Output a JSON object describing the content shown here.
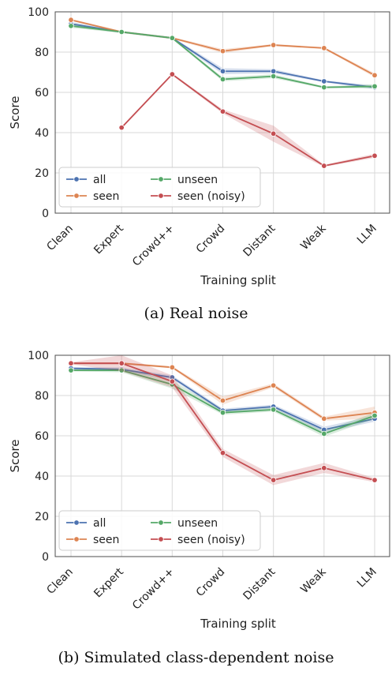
{
  "figure": {
    "caption_a": "(a) Real noise",
    "caption_b": "(b) Simulated class-dependent noise"
  },
  "colors": {
    "all": "#4c72b0",
    "seen": "#dd8452",
    "unseen": "#55a868",
    "seen_noisy": "#c44e52",
    "grid": "#d9d9d9",
    "axis": "#4d4d4d"
  },
  "chart_data": [
    {
      "type": "line",
      "xlabel": "Training split",
      "ylabel": "Score",
      "categories": [
        "Clean",
        "Expert",
        "Crowd++",
        "Crowd",
        "Distant",
        "Weak",
        "LLM"
      ],
      "ylim": [
        0,
        100
      ],
      "yticks": [
        0,
        20,
        40,
        60,
        80,
        100
      ],
      "grid": true,
      "legend": "lower-left",
      "series": [
        {
          "name": "all",
          "values": [
            94,
            90,
            87,
            70.5,
            70.5,
            65.5,
            62.5
          ],
          "band": [
            1,
            0.5,
            0.5,
            1.5,
            1,
            0.5,
            1
          ]
        },
        {
          "name": "seen",
          "values": [
            96,
            90,
            87,
            80.5,
            83.5,
            82,
            68.5
          ],
          "band": [
            0.5,
            0.5,
            0.5,
            1,
            0.5,
            0.5,
            1
          ]
        },
        {
          "name": "unseen",
          "values": [
            93,
            90,
            87,
            66.5,
            68,
            62.5,
            63
          ],
          "band": [
            1,
            0.5,
            0.5,
            1,
            1,
            0.5,
            1
          ]
        },
        {
          "name": "seen (noisy)",
          "values": [
            null,
            42.5,
            69,
            50.5,
            39.5,
            23.5,
            28.5
          ],
          "band": [
            0,
            0.5,
            0.5,
            1,
            4,
            0.5,
            1
          ]
        }
      ]
    },
    {
      "type": "line",
      "xlabel": "Training split",
      "ylabel": "Score",
      "categories": [
        "Clean",
        "Expert",
        "Crowd++",
        "Crowd",
        "Distant",
        "Weak",
        "LLM"
      ],
      "ylim": [
        0,
        100
      ],
      "yticks": [
        0,
        20,
        40,
        60,
        80,
        100
      ],
      "grid": true,
      "legend": "lower-left",
      "series": [
        {
          "name": "all",
          "values": [
            93.5,
            93,
            89,
            72.5,
            74.5,
            63,
            68.5
          ],
          "band": [
            0.5,
            1,
            1,
            1,
            1,
            1.5,
            1.5
          ]
        },
        {
          "name": "seen",
          "values": [
            96,
            96,
            94,
            77.5,
            85,
            68.5,
            71.5
          ],
          "band": [
            0.5,
            0.5,
            0.5,
            2,
            1,
            1,
            3
          ]
        },
        {
          "name": "unseen",
          "values": [
            92.5,
            92.5,
            85.5,
            71.5,
            73,
            61,
            70
          ],
          "band": [
            0.5,
            1,
            2,
            1,
            1,
            1.5,
            1.5
          ]
        },
        {
          "name": "seen (noisy)",
          "values": [
            96,
            96,
            87,
            51.5,
            38,
            44,
            38
          ],
          "band": [
            0.5,
            4,
            3,
            2,
            2.5,
            2.5,
            1
          ]
        }
      ]
    }
  ]
}
